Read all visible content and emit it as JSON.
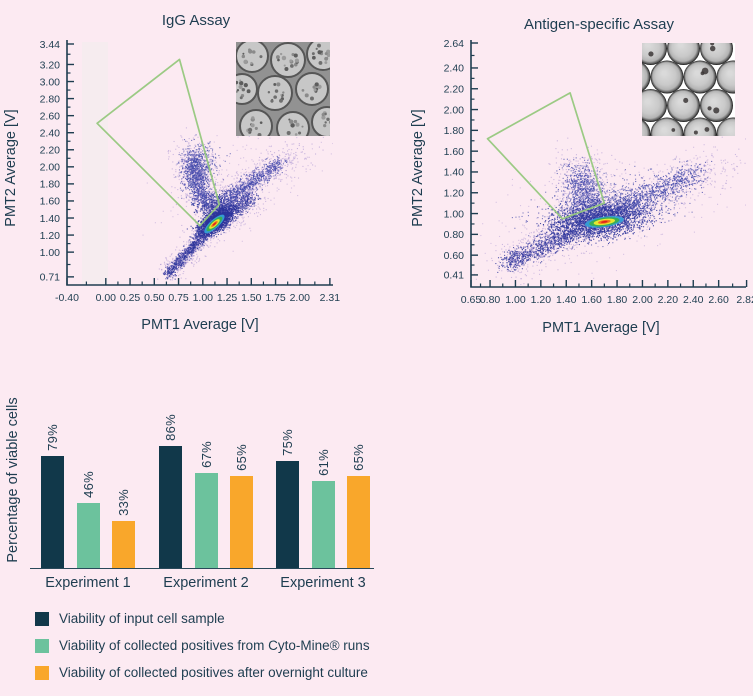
{
  "background": "#fceaf2",
  "text_color": "#1e3d50",
  "chart_data": [
    {
      "type": "scatter",
      "id": "igg-assay",
      "title": "IgG Assay",
      "xlabel": "PMT1 Average [V]",
      "ylabel": "PMT2 Average [V]",
      "x_ticks": [
        -0.4,
        0.0,
        0.25,
        0.5,
        0.75,
        1.0,
        1.25,
        1.5,
        1.75,
        2.0,
        2.31
      ],
      "y_ticks": [
        3.44,
        3.2,
        3.0,
        2.8,
        2.6,
        2.4,
        2.2,
        2.0,
        1.8,
        1.6,
        1.4,
        1.2,
        1.0,
        0.71
      ],
      "xlim": [
        -0.4,
        2.34
      ],
      "ylim": [
        0.62,
        3.49
      ],
      "grid": false,
      "gate_color": "#96c87d",
      "gate_polygon": [
        [
          0.76,
          3.26
        ],
        [
          1.17,
          1.56
        ],
        [
          0.97,
          1.31
        ],
        [
          -0.09,
          2.51
        ]
      ],
      "point_colors": {
        "core": "#2d349b",
        "mid": "#434aab",
        "fringe": "#9d87cd"
      },
      "density_hotspot": {
        "center": [
          1.12,
          1.33
        ],
        "angle": 42,
        "layers": [
          [
            0.135,
            0.052,
            "#35a3d8"
          ],
          [
            0.105,
            0.04,
            "#3bb04c"
          ],
          [
            0.07,
            0.027,
            "#f4ee2e"
          ],
          [
            0.043,
            0.016,
            "#f2691d"
          ],
          [
            0.023,
            0.0085,
            "#dd1b1b"
          ]
        ]
      },
      "clusters": [
        {
          "kind": "line",
          "from": [
            0.63,
            0.74
          ],
          "to": [
            1.06,
            1.27
          ],
          "sigma": 0.03,
          "n": 750,
          "color": "core",
          "alpha": 0.8
        },
        {
          "kind": "line",
          "from": [
            0.63,
            0.74
          ],
          "to": [
            1.06,
            1.27
          ],
          "sigma": 0.07,
          "n": 300,
          "color": "fringe",
          "alpha": 0.5
        },
        {
          "kind": "line",
          "from": [
            1.04,
            1.28
          ],
          "to": [
            1.5,
            1.66
          ],
          "sigma": 0.05,
          "n": 750,
          "color": "core",
          "alpha": 0.8
        },
        {
          "kind": "line",
          "from": [
            1.04,
            1.28
          ],
          "to": [
            1.52,
            1.68
          ],
          "sigma": 0.1,
          "n": 320,
          "color": "fringe",
          "alpha": 0.5
        },
        {
          "kind": "blob",
          "center": [
            1.13,
            1.37
          ],
          "sx": 0.11,
          "sy": 0.05,
          "angle": 40,
          "n": 1900,
          "color": "core",
          "alpha": 0.85
        },
        {
          "kind": "blob",
          "center": [
            1.12,
            1.56
          ],
          "sx": 0.09,
          "sy": 0.07,
          "angle": 20,
          "n": 450,
          "color": "core",
          "alpha": 0.8
        },
        {
          "kind": "line",
          "from": [
            1.0,
            1.58
          ],
          "to": [
            0.89,
            2.13
          ],
          "sigma": 0.055,
          "n": 800,
          "color": "mid",
          "alpha": 0.8
        },
        {
          "kind": "line",
          "from": [
            1.0,
            1.6
          ],
          "to": [
            0.87,
            2.22
          ],
          "sigma": 0.11,
          "n": 430,
          "color": "fringe",
          "alpha": 0.5
        },
        {
          "kind": "blob",
          "center": [
            0.95,
            2.0
          ],
          "sx": 0.1,
          "sy": 0.14,
          "angle": -12,
          "n": 380,
          "color": "mid",
          "alpha": 0.7
        },
        {
          "kind": "line",
          "from": [
            1.22,
            1.6
          ],
          "to": [
            1.78,
            2.05
          ],
          "sigma": 0.045,
          "n": 680,
          "color": "mid",
          "alpha": 0.8
        },
        {
          "kind": "line",
          "from": [
            1.24,
            1.62
          ],
          "to": [
            1.86,
            2.1
          ],
          "sigma": 0.09,
          "n": 300,
          "color": "fringe",
          "alpha": 0.5
        },
        {
          "kind": "blob",
          "center": [
            1.38,
            1.82
          ],
          "sx": 0.42,
          "sy": 0.26,
          "angle": 35,
          "n": 220,
          "color": "fringe",
          "alpha": 0.4
        },
        {
          "kind": "blob",
          "center": [
            1.95,
            2.12
          ],
          "sx": 0.12,
          "sy": 0.08,
          "angle": 30,
          "n": 50,
          "color": "fringe",
          "alpha": 0.55
        }
      ],
      "inset_label": "brightfield micrograph of cells in droplets"
    },
    {
      "type": "scatter",
      "id": "antigen-specific-assay",
      "title": "Antigen-specific Assay",
      "xlabel": "PMT1 Average [V]",
      "ylabel": "PMT2 Average [V]",
      "x_ticks": [
        0.65,
        0.8,
        1.0,
        1.2,
        1.4,
        1.6,
        1.8,
        2.0,
        2.2,
        2.4,
        2.6,
        2.82
      ],
      "y_ticks": [
        2.64,
        2.4,
        2.2,
        2.0,
        1.8,
        1.6,
        1.4,
        1.2,
        1.0,
        0.8,
        0.6,
        0.41
      ],
      "xlim": [
        0.65,
        2.87
      ],
      "ylim": [
        0.3,
        2.67
      ],
      "grid": false,
      "gate_color": "#96c87d",
      "gate_polygon": [
        [
          0.78,
          1.72
        ],
        [
          1.43,
          2.16
        ],
        [
          1.7,
          1.1
        ],
        [
          1.37,
          0.95
        ]
      ],
      "point_colors": {
        "core": "#2d349b",
        "mid": "#434aab",
        "fringe": "#9d87cd"
      },
      "density_hotspot": {
        "center": [
          1.7,
          0.92
        ],
        "angle": 8,
        "layers": [
          [
            0.155,
            0.05,
            "#35a3d8"
          ],
          [
            0.12,
            0.04,
            "#3bb04c"
          ],
          [
            0.085,
            0.028,
            "#f4ee2e"
          ],
          [
            0.05,
            0.017,
            "#f2691d"
          ],
          [
            0.026,
            0.009,
            "#dd1b1b"
          ]
        ]
      },
      "clusters": [
        {
          "kind": "line",
          "from": [
            0.92,
            0.52
          ],
          "to": [
            1.48,
            0.84
          ],
          "sigma": 0.045,
          "n": 750,
          "color": "core",
          "alpha": 0.8
        },
        {
          "kind": "line",
          "from": [
            0.92,
            0.52
          ],
          "to": [
            1.48,
            0.84
          ],
          "sigma": 0.1,
          "n": 380,
          "color": "fringe",
          "alpha": 0.5
        },
        {
          "kind": "blob",
          "center": [
            1.66,
            0.95
          ],
          "sx": 0.18,
          "sy": 0.085,
          "angle": 10,
          "n": 2500,
          "color": "core",
          "alpha": 0.85
        },
        {
          "kind": "blob",
          "center": [
            1.72,
            1.07
          ],
          "sx": 0.27,
          "sy": 0.13,
          "angle": 14,
          "n": 850,
          "color": "mid",
          "alpha": 0.7
        },
        {
          "kind": "line",
          "from": [
            1.88,
            1.08
          ],
          "to": [
            2.42,
            1.4
          ],
          "sigma": 0.06,
          "n": 620,
          "color": "mid",
          "alpha": 0.8
        },
        {
          "kind": "line",
          "from": [
            1.9,
            1.1
          ],
          "to": [
            2.62,
            1.48
          ],
          "sigma": 0.11,
          "n": 260,
          "color": "fringe",
          "alpha": 0.45
        },
        {
          "kind": "line",
          "from": [
            1.57,
            1.08
          ],
          "to": [
            1.51,
            1.4
          ],
          "sigma": 0.07,
          "n": 620,
          "color": "mid",
          "alpha": 0.75
        },
        {
          "kind": "line",
          "from": [
            1.56,
            1.1
          ],
          "to": [
            1.49,
            1.47
          ],
          "sigma": 0.13,
          "n": 320,
          "color": "fringe",
          "alpha": 0.5
        },
        {
          "kind": "blob",
          "center": [
            1.6,
            0.95
          ],
          "sx": 0.5,
          "sy": 0.25,
          "angle": 22,
          "n": 260,
          "color": "fringe",
          "alpha": 0.4
        },
        {
          "kind": "blob",
          "center": [
            2.5,
            1.38
          ],
          "sx": 0.18,
          "sy": 0.09,
          "angle": 25,
          "n": 60,
          "color": "fringe",
          "alpha": 0.5
        }
      ],
      "inset_label": "brightfield micrograph of packed picodroplets"
    },
    {
      "type": "bar",
      "id": "viability-bar-chart",
      "ylabel": "Percentage of viable cells",
      "categories": [
        "Experiment 1",
        "Experiment 2",
        "Experiment 3"
      ],
      "series": [
        {
          "name": "Viability of input cell sample",
          "color": "#11384a",
          "values": [
            79,
            86,
            75
          ]
        },
        {
          "name": "Viability of collected positives from Cyto-Mine® runs",
          "color": "#6cc29d",
          "values": [
            46,
            67,
            61
          ]
        },
        {
          "name": "Viability of collected positives after overnight culture",
          "color": "#f9a72b",
          "values": [
            33,
            65,
            65
          ]
        }
      ],
      "value_format": "{v}%",
      "ylim": [
        0,
        100
      ],
      "legend_position": "below-left"
    }
  ],
  "legend": {
    "items": [
      {
        "label": "Viability of input cell sample",
        "color": "#11384a"
      },
      {
        "label": "Viability of collected positives from Cyto-Mine® runs",
        "color": "#6cc29d"
      },
      {
        "label": "Viability of collected positives after overnight culture",
        "color": "#f9a72b"
      }
    ]
  }
}
